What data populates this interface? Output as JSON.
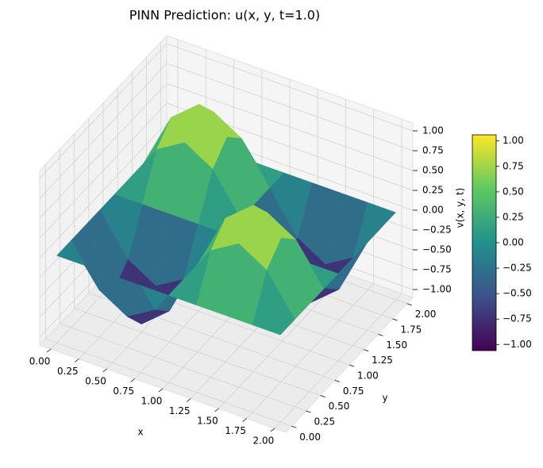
{
  "chart_data": {
    "type": "surface",
    "title": "PINN Prediction: u(x, y, t=1.0)",
    "x_label": "x",
    "y_label": "y",
    "z_label": "v(x, y, t)",
    "x": [
      0,
      0.25,
      0.5,
      0.75,
      1,
      1.25,
      1.5,
      1.75,
      2
    ],
    "y": [
      0,
      0.25,
      0.5,
      0.75,
      1,
      1.25,
      1.5,
      1.75,
      2
    ],
    "z": [
      [
        0,
        0,
        0,
        0,
        0,
        0,
        0,
        0,
        0
      ],
      [
        0,
        -0.5,
        -0.71,
        -0.5,
        0,
        0.5,
        0.71,
        0.5,
        0
      ],
      [
        0,
        -0.71,
        -1,
        -0.71,
        0,
        0.71,
        1,
        0.71,
        0
      ],
      [
        0,
        -0.5,
        -0.71,
        -0.5,
        0,
        0.5,
        0.71,
        0.5,
        0
      ],
      [
        0,
        0,
        0,
        0,
        0,
        0,
        0,
        0,
        0
      ],
      [
        0,
        0.5,
        0.71,
        0.5,
        0,
        -0.5,
        -0.71,
        -0.5,
        0
      ],
      [
        0,
        0.71,
        1,
        0.71,
        0,
        -0.71,
        -1,
        -0.71,
        0
      ],
      [
        0,
        0.5,
        0.71,
        0.5,
        0,
        -0.5,
        -0.71,
        -0.5,
        0
      ],
      [
        0,
        0,
        0,
        0,
        0,
        0,
        0,
        0,
        0
      ]
    ],
    "xlim": [
      -0.1,
      2.1
    ],
    "ylim": [
      -0.1,
      2.1
    ],
    "zlim": [
      -1.1,
      1.1
    ],
    "clim": [
      -1.06,
      1.06
    ],
    "xticks": [
      {
        "value": 0,
        "label": "0.00"
      },
      {
        "value": 0.25,
        "label": "0.25"
      },
      {
        "value": 0.5,
        "label": "0.50"
      },
      {
        "value": 0.75,
        "label": "0.75"
      },
      {
        "value": 1,
        "label": "1.00"
      },
      {
        "value": 1.25,
        "label": "1.25"
      },
      {
        "value": 1.5,
        "label": "1.50"
      },
      {
        "value": 1.75,
        "label": "1.75"
      },
      {
        "value": 2,
        "label": "2.00"
      }
    ],
    "yticks": [
      {
        "value": 0,
        "label": "0.00"
      },
      {
        "value": 0.25,
        "label": "0.25"
      },
      {
        "value": 0.5,
        "label": "0.50"
      },
      {
        "value": 0.75,
        "label": "0.75"
      },
      {
        "value": 1,
        "label": "1.00"
      },
      {
        "value": 1.25,
        "label": "1.25"
      },
      {
        "value": 1.5,
        "label": "1.50"
      },
      {
        "value": 1.75,
        "label": "1.75"
      },
      {
        "value": 2,
        "label": "2.00"
      }
    ],
    "zticks": [
      {
        "value": -1,
        "label": "−1.00"
      },
      {
        "value": -0.75,
        "label": "−0.75"
      },
      {
        "value": -0.5,
        "label": "−0.50"
      },
      {
        "value": -0.25,
        "label": "−0.25"
      },
      {
        "value": 0,
        "label": "0.00"
      },
      {
        "value": 0.25,
        "label": "0.25"
      },
      {
        "value": 0.5,
        "label": "0.50"
      },
      {
        "value": 0.75,
        "label": "0.75"
      },
      {
        "value": 1,
        "label": "1.00"
      }
    ],
    "cbar_ticks": [
      {
        "value": -1,
        "label": "−1.00"
      },
      {
        "value": -0.75,
        "label": "−0.75"
      },
      {
        "value": -0.5,
        "label": "−0.50"
      },
      {
        "value": -0.25,
        "label": "−0.25"
      },
      {
        "value": 0,
        "label": "0.00"
      },
      {
        "value": 0.25,
        "label": "0.25"
      },
      {
        "value": 0.5,
        "label": "0.50"
      },
      {
        "value": 0.75,
        "label": "0.75"
      },
      {
        "value": 1,
        "label": "1.00"
      }
    ],
    "grid": true
  }
}
